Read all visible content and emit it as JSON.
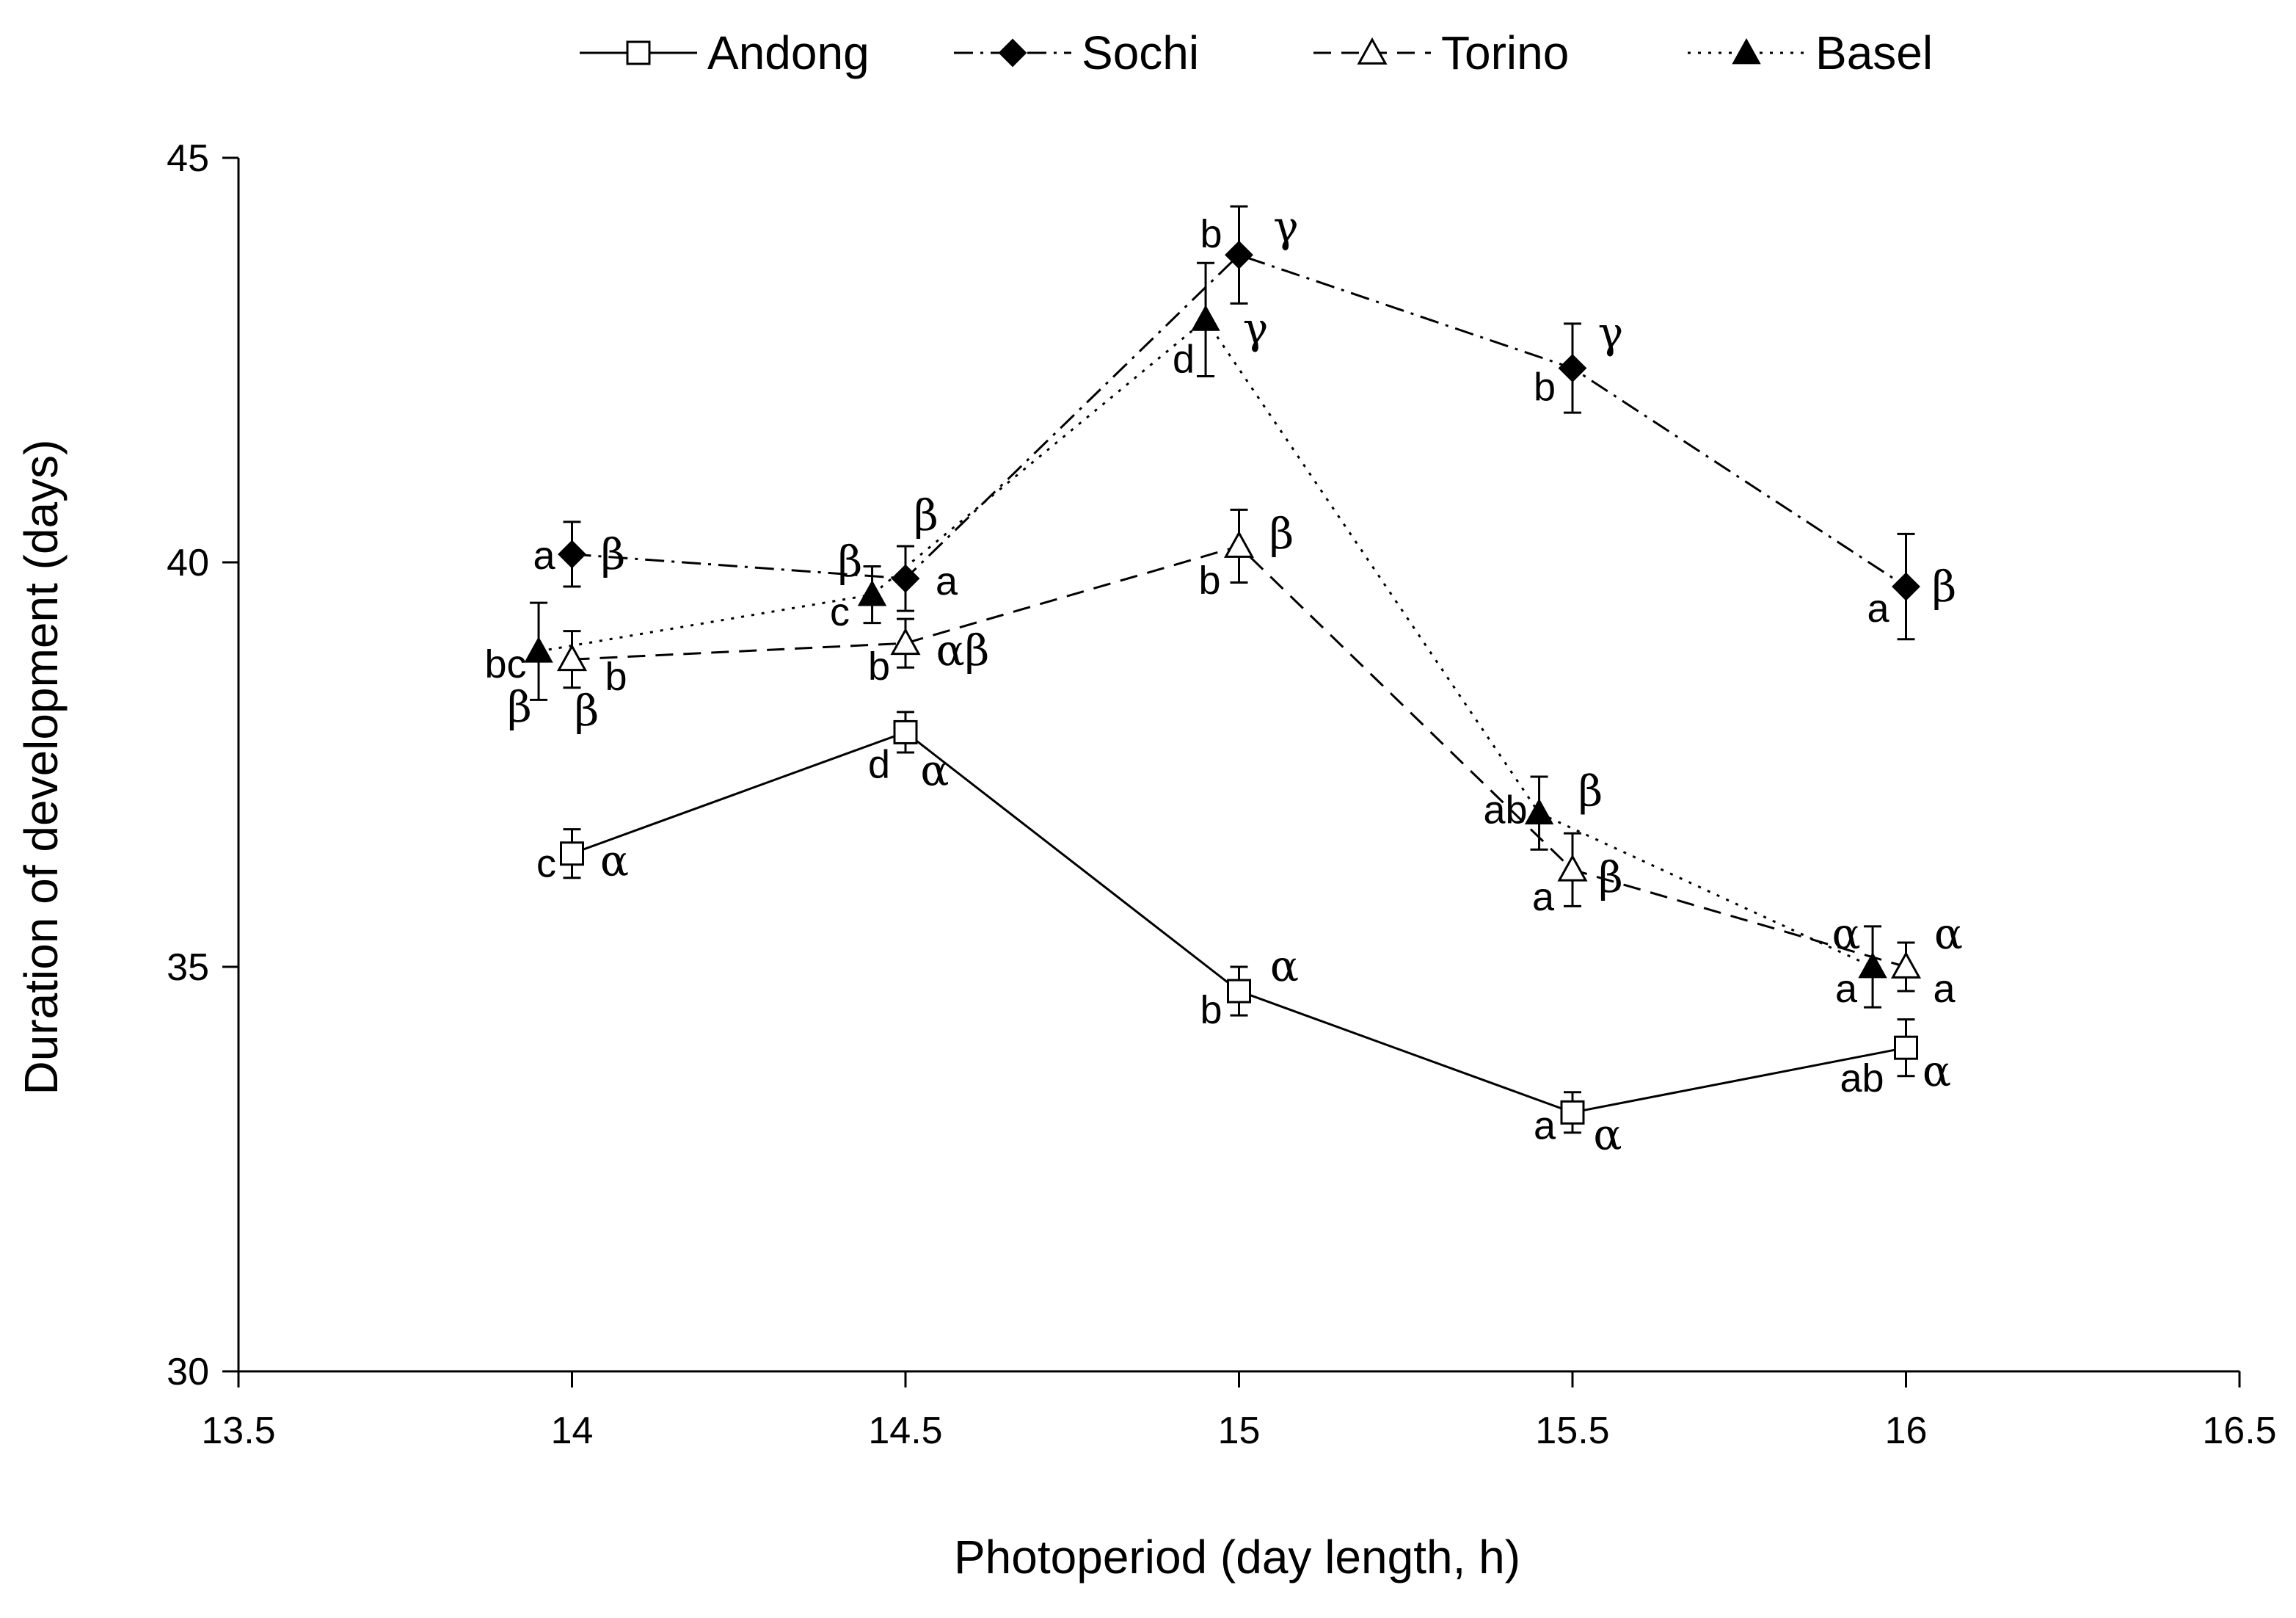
{
  "chart_data": {
    "type": "line",
    "xlabel": "Photoperiod (day length, h)",
    "ylabel": "Duration of development (days)",
    "xlim": [
      13.5,
      16.5
    ],
    "ylim": [
      30,
      45
    ],
    "xticks": [
      13.5,
      14,
      14.5,
      15,
      15.5,
      16,
      16.5
    ],
    "xtick_labels": [
      "13.5",
      "14",
      "14.5",
      "15",
      "15.5",
      "16",
      "16.5"
    ],
    "yticks": [
      30,
      35,
      40,
      45
    ],
    "ytick_labels": [
      "30",
      "35",
      "40",
      "45"
    ],
    "grid": false,
    "legend_position": "top",
    "series": [
      {
        "name": "Andong",
        "line_style": "solid",
        "marker": "open-square",
        "x": [
          14,
          14.5,
          15,
          15.5,
          16
        ],
        "values": [
          36.4,
          37.9,
          34.7,
          33.2,
          34.0
        ],
        "errors": [
          0.3,
          0.25,
          0.3,
          0.25,
          0.35
        ],
        "letters": [
          "c",
          "d",
          "b",
          "a",
          "ab"
        ],
        "greek": [
          "α",
          "α",
          "α",
          "α",
          "α"
        ]
      },
      {
        "name": "Sochi",
        "line_style": "dash-dot",
        "marker": "filled-diamond",
        "x": [
          14,
          14.5,
          15,
          15.5,
          16
        ],
        "values": [
          40.1,
          39.8,
          43.8,
          42.4,
          39.7
        ],
        "errors": [
          0.4,
          0.4,
          0.6,
          0.55,
          0.65
        ],
        "letters": [
          "a",
          "a",
          "b",
          "b",
          "a"
        ],
        "greek": [
          "β",
          "β",
          "γ",
          "γ",
          "β"
        ]
      },
      {
        "name": "Torino",
        "line_style": "dashed",
        "marker": "open-triangle",
        "x": [
          14,
          14.5,
          15,
          15.5,
          16
        ],
        "values": [
          38.8,
          39.0,
          40.2,
          36.2,
          35.0
        ],
        "errors": [
          0.35,
          0.3,
          0.45,
          0.45,
          0.3
        ],
        "letters": [
          "b",
          "b",
          "b",
          "a",
          "a"
        ],
        "greek": [
          "β",
          "αβ",
          "β",
          "β",
          "α"
        ]
      },
      {
        "name": "Basel",
        "line_style": "dotted",
        "marker": "filled-triangle",
        "x": [
          13.95,
          14.45,
          14.95,
          15.45,
          15.95
        ],
        "values": [
          38.9,
          39.6,
          43.0,
          36.9,
          35.0
        ],
        "errors": [
          0.6,
          0.35,
          0.7,
          0.45,
          0.5
        ],
        "letters": [
          "bc",
          "c",
          "d",
          "ab",
          "a"
        ],
        "greek": [
          "β",
          "β",
          "γ",
          "β",
          "α"
        ]
      }
    ]
  }
}
